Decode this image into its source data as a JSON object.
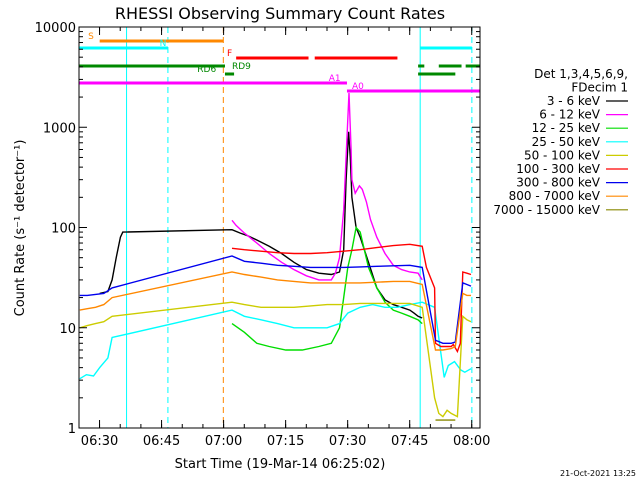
{
  "chart_data": {
    "type": "line",
    "title": "RHESSI Observing Summary Count Rates",
    "xlabel": "Start Time (19-Mar-14 06:25:02)",
    "ylabel": "Count Rate (s⁻¹ detector⁻¹)",
    "yscale": "log",
    "ylim": [
      1,
      10000
    ],
    "xlim": [
      "06:25:02",
      "08:02:00"
    ],
    "x_ticks": [
      "06:30",
      "06:45",
      "07:00",
      "07:15",
      "07:30",
      "07:45",
      "08:00"
    ],
    "y_ticks": [
      "1",
      "10",
      "100",
      "1000",
      "10000"
    ],
    "legend": {
      "position": "right",
      "title_lines": [
        "Det 1,3,4,5,6,9,",
        "FDecim 1"
      ],
      "entries": [
        {
          "label": "3 - 6 keV",
          "color": "#000000"
        },
        {
          "label": "6 - 12 keV",
          "color": "#ff00ff"
        },
        {
          "label": "12 - 25 keV",
          "color": "#00dd00"
        },
        {
          "label": "25 - 50 keV",
          "color": "#00ffff"
        },
        {
          "label": "50 - 100 keV",
          "color": "#cccc00"
        },
        {
          "label": "100 - 300 keV",
          "color": "#ff0000"
        },
        {
          "label": "300 - 800 keV",
          "color": "#0000ee"
        },
        {
          "label": "800 - 7000 keV",
          "color": "#ff8800"
        },
        {
          "label": "7000 - 15000 keV",
          "color": "#888800"
        }
      ]
    },
    "series": [
      {
        "name": "3 - 6 keV",
        "color": "#000000",
        "points": [
          [
            5,
            22
          ],
          [
            7,
            23
          ],
          [
            8,
            30
          ],
          [
            9,
            50
          ],
          [
            10,
            80
          ],
          [
            10.6,
            90
          ],
          [
            37,
            95
          ],
          [
            39,
            88
          ],
          [
            41,
            82
          ],
          [
            43,
            75
          ],
          [
            46,
            65
          ],
          [
            49,
            55
          ],
          [
            52,
            45
          ],
          [
            55,
            38
          ],
          [
            58,
            35
          ],
          [
            61,
            34
          ],
          [
            63,
            36
          ],
          [
            64,
            60
          ],
          [
            64.6,
            300
          ],
          [
            65.2,
            900
          ],
          [
            65.6,
            500
          ],
          [
            66,
            200
          ],
          [
            67,
            100
          ],
          [
            68,
            80
          ],
          [
            70,
            45
          ],
          [
            72,
            25
          ],
          [
            74,
            19
          ],
          [
            76,
            17
          ],
          [
            78,
            16
          ],
          [
            80,
            15
          ],
          [
            81,
            14
          ],
          [
            82,
            13
          ],
          [
            83,
            12.5
          ]
        ]
      },
      {
        "name": "6 - 12 keV",
        "color": "#ff00ff",
        "points": [
          [
            37,
            118
          ],
          [
            38,
            105
          ],
          [
            40,
            88
          ],
          [
            43,
            70
          ],
          [
            46,
            55
          ],
          [
            49,
            45
          ],
          [
            52,
            38
          ],
          [
            55,
            33
          ],
          [
            58,
            30
          ],
          [
            61,
            30
          ],
          [
            62,
            35
          ],
          [
            63,
            50
          ],
          [
            64,
            150
          ],
          [
            64.8,
            800
          ],
          [
            65.3,
            2200
          ],
          [
            65.8,
            600
          ],
          [
            66,
            300
          ],
          [
            66.8,
            220
          ],
          [
            67.8,
            260
          ],
          [
            68.5,
            240
          ],
          [
            69.5,
            180
          ],
          [
            70.5,
            120
          ],
          [
            72,
            80
          ],
          [
            74,
            55
          ],
          [
            76,
            42
          ],
          [
            78,
            38
          ],
          [
            80,
            36
          ],
          [
            82,
            35
          ],
          [
            83,
            30
          ]
        ]
      },
      {
        "name": "12 - 25 keV",
        "color": "#00dd00",
        "points": [
          [
            37,
            11
          ],
          [
            40,
            9
          ],
          [
            43,
            7
          ],
          [
            46,
            6.5
          ],
          [
            50,
            6
          ],
          [
            54,
            6
          ],
          [
            58,
            6.5
          ],
          [
            61,
            7
          ],
          [
            63,
            10
          ],
          [
            64,
            20
          ],
          [
            65,
            40
          ],
          [
            66,
            60
          ],
          [
            67,
            100
          ],
          [
            68,
            90
          ],
          [
            69,
            60
          ],
          [
            70,
            40
          ],
          [
            72,
            25
          ],
          [
            74,
            18
          ],
          [
            76,
            15
          ],
          [
            78,
            14
          ],
          [
            80,
            13
          ],
          [
            82,
            12
          ],
          [
            83,
            11
          ]
        ]
      },
      {
        "name": "25 - 50 keV",
        "color": "#00ffff",
        "points": [
          [
            0.2,
            3.1
          ],
          [
            1.8,
            3.4
          ],
          [
            3.5,
            3.3
          ],
          [
            5,
            4
          ],
          [
            7,
            5
          ],
          [
            8,
            8
          ],
          [
            37,
            15
          ],
          [
            40,
            13
          ],
          [
            44,
            12
          ],
          [
            48,
            11
          ],
          [
            52,
            10
          ],
          [
            56,
            10
          ],
          [
            60,
            10
          ],
          [
            63,
            11
          ],
          [
            65,
            14
          ],
          [
            68,
            16
          ],
          [
            71,
            17
          ],
          [
            74,
            16
          ],
          [
            77,
            16
          ],
          [
            80,
            17
          ],
          [
            83,
            18
          ],
          [
            86,
            16
          ],
          [
            88.3,
            3.2
          ],
          [
            89.3,
            4.2
          ],
          [
            90.8,
            4.6
          ],
          [
            92.3,
            3.8
          ],
          [
            93.3,
            3.6
          ],
          [
            94.8,
            3.9
          ]
        ]
      },
      {
        "name": "50 - 100 keV",
        "color": "#cccc00",
        "points": [
          [
            0.2,
            10
          ],
          [
            2,
            10.5
          ],
          [
            4,
            11
          ],
          [
            6,
            11.5
          ],
          [
            8,
            13
          ],
          [
            37,
            18
          ],
          [
            40,
            17
          ],
          [
            44,
            16
          ],
          [
            48,
            16
          ],
          [
            52,
            16
          ],
          [
            56,
            16.5
          ],
          [
            60,
            17
          ],
          [
            64,
            17
          ],
          [
            68,
            17.5
          ],
          [
            72,
            17.5
          ],
          [
            76,
            17.5
          ],
          [
            80,
            17.5
          ],
          [
            83,
            16
          ],
          [
            86,
            2.0
          ],
          [
            87,
            1.4
          ],
          [
            88,
            1.3
          ],
          [
            89,
            1.5
          ],
          [
            90,
            1.4
          ],
          [
            91.5,
            1.3
          ],
          [
            92.8,
            13
          ],
          [
            93.8,
            12
          ],
          [
            94.8,
            11.5
          ]
        ]
      },
      {
        "name": "100 - 300 keV",
        "color": "#ff0000",
        "points": [
          [
            37,
            62
          ],
          [
            40,
            60
          ],
          [
            44,
            58
          ],
          [
            48,
            56
          ],
          [
            52,
            55
          ],
          [
            56,
            55
          ],
          [
            60,
            56
          ],
          [
            64,
            58
          ],
          [
            68,
            60
          ],
          [
            72,
            63
          ],
          [
            76,
            66
          ],
          [
            80,
            68
          ],
          [
            83,
            65
          ],
          [
            84,
            40
          ],
          [
            86,
            25
          ],
          [
            86.2,
            7
          ],
          [
            87.5,
            6.5
          ],
          [
            89,
            6.5
          ],
          [
            90,
            6.5
          ],
          [
            90.5,
            6.8
          ],
          [
            91.5,
            5.8
          ],
          [
            92.2,
            7
          ],
          [
            92.8,
            36
          ],
          [
            93.8,
            35
          ],
          [
            94.8,
            34
          ]
        ]
      },
      {
        "name": "300 - 800 keV",
        "color": "#0000ee",
        "points": [
          [
            0.2,
            21
          ],
          [
            2,
            21
          ],
          [
            4,
            21.5
          ],
          [
            6,
            22
          ],
          [
            8,
            25
          ],
          [
            37,
            52
          ],
          [
            40,
            46
          ],
          [
            44,
            44
          ],
          [
            48,
            42
          ],
          [
            52,
            41
          ],
          [
            56,
            40
          ],
          [
            60,
            40
          ],
          [
            64,
            40
          ],
          [
            68,
            40.5
          ],
          [
            72,
            41
          ],
          [
            76,
            41.5
          ],
          [
            80,
            42
          ],
          [
            83,
            40
          ],
          [
            86.2,
            7.5
          ],
          [
            88,
            7
          ],
          [
            90,
            7
          ],
          [
            91,
            7.2
          ],
          [
            92.8,
            28
          ],
          [
            93.8,
            27
          ],
          [
            94.8,
            26
          ]
        ]
      },
      {
        "name": "800 - 7000 keV",
        "color": "#ff8800",
        "points": [
          [
            0.2,
            15
          ],
          [
            2,
            15.5
          ],
          [
            4,
            16
          ],
          [
            6,
            17
          ],
          [
            8,
            20
          ],
          [
            37,
            36
          ],
          [
            40,
            34
          ],
          [
            44,
            32
          ],
          [
            48,
            30
          ],
          [
            52,
            29
          ],
          [
            56,
            28
          ],
          [
            60,
            28
          ],
          [
            64,
            28
          ],
          [
            68,
            28
          ],
          [
            72,
            28.5
          ],
          [
            76,
            29
          ],
          [
            80,
            29
          ],
          [
            83,
            27
          ],
          [
            86.2,
            6
          ],
          [
            88,
            6
          ],
          [
            90,
            6.2
          ],
          [
            91,
            6.5
          ],
          [
            92.8,
            22
          ],
          [
            93.8,
            21
          ],
          [
            94.8,
            21
          ]
        ]
      },
      {
        "name": "7000 - 15000 keV",
        "color": "#888800",
        "points": [
          [
            86.2,
            1.2
          ],
          [
            88,
            1.2
          ],
          [
            90,
            1.2
          ],
          [
            91,
            1.2
          ]
        ]
      }
    ],
    "vlines": [
      {
        "t": 11.5,
        "color": "#00ffff",
        "style": "solid"
      },
      {
        "t": 21.5,
        "color": "#00ffff",
        "style": "dashed"
      },
      {
        "t": 34.9,
        "color": "#ff8800",
        "style": "dashed"
      },
      {
        "t": 82.5,
        "color": "#00ffff",
        "style": "solid"
      },
      {
        "t": 95.0,
        "color": "#00ffff",
        "style": "dashed"
      }
    ],
    "flags": [
      {
        "label": "S",
        "color": "#ff8800",
        "row": 1,
        "segments": [
          [
            5,
            34.9
          ]
        ],
        "label_t": 2.2
      },
      {
        "label": "N",
        "color": "#00ffff",
        "row": 2,
        "segments": [
          [
            0,
            21.5
          ],
          [
            82.5,
            95
          ]
        ],
        "label_t": 19.5
      },
      {
        "label": "F",
        "color": "#ff0000",
        "row": 3,
        "segments": [
          [
            38,
            55.5
          ],
          [
            57,
            77
          ]
        ],
        "label_t": 35.8
      },
      {
        "label": "RD9",
        "color": "#008800",
        "row": 4,
        "segments": [
          [
            0,
            35.3
          ],
          [
            82,
            83.5
          ],
          [
            87,
            92.5
          ],
          [
            93.5,
            97
          ]
        ],
        "label_t": 37
      },
      {
        "label": "RD6",
        "color": "#008800",
        "row": 5,
        "segments": [
          [
            35.3,
            37.5
          ],
          [
            82,
            91
          ]
        ],
        "label_t": 28.6
      },
      {
        "label": "A1",
        "color": "#ff00ff",
        "row": 6,
        "segments": [
          [
            0,
            64.8
          ]
        ],
        "label_t": 60.4
      },
      {
        "label": "A0",
        "color": "#ff00ff",
        "row": 7,
        "segments": [
          [
            64.8,
            97
          ]
        ],
        "label_t": 66
      }
    ],
    "timestamp": "21-Oct-2021 13:25"
  }
}
